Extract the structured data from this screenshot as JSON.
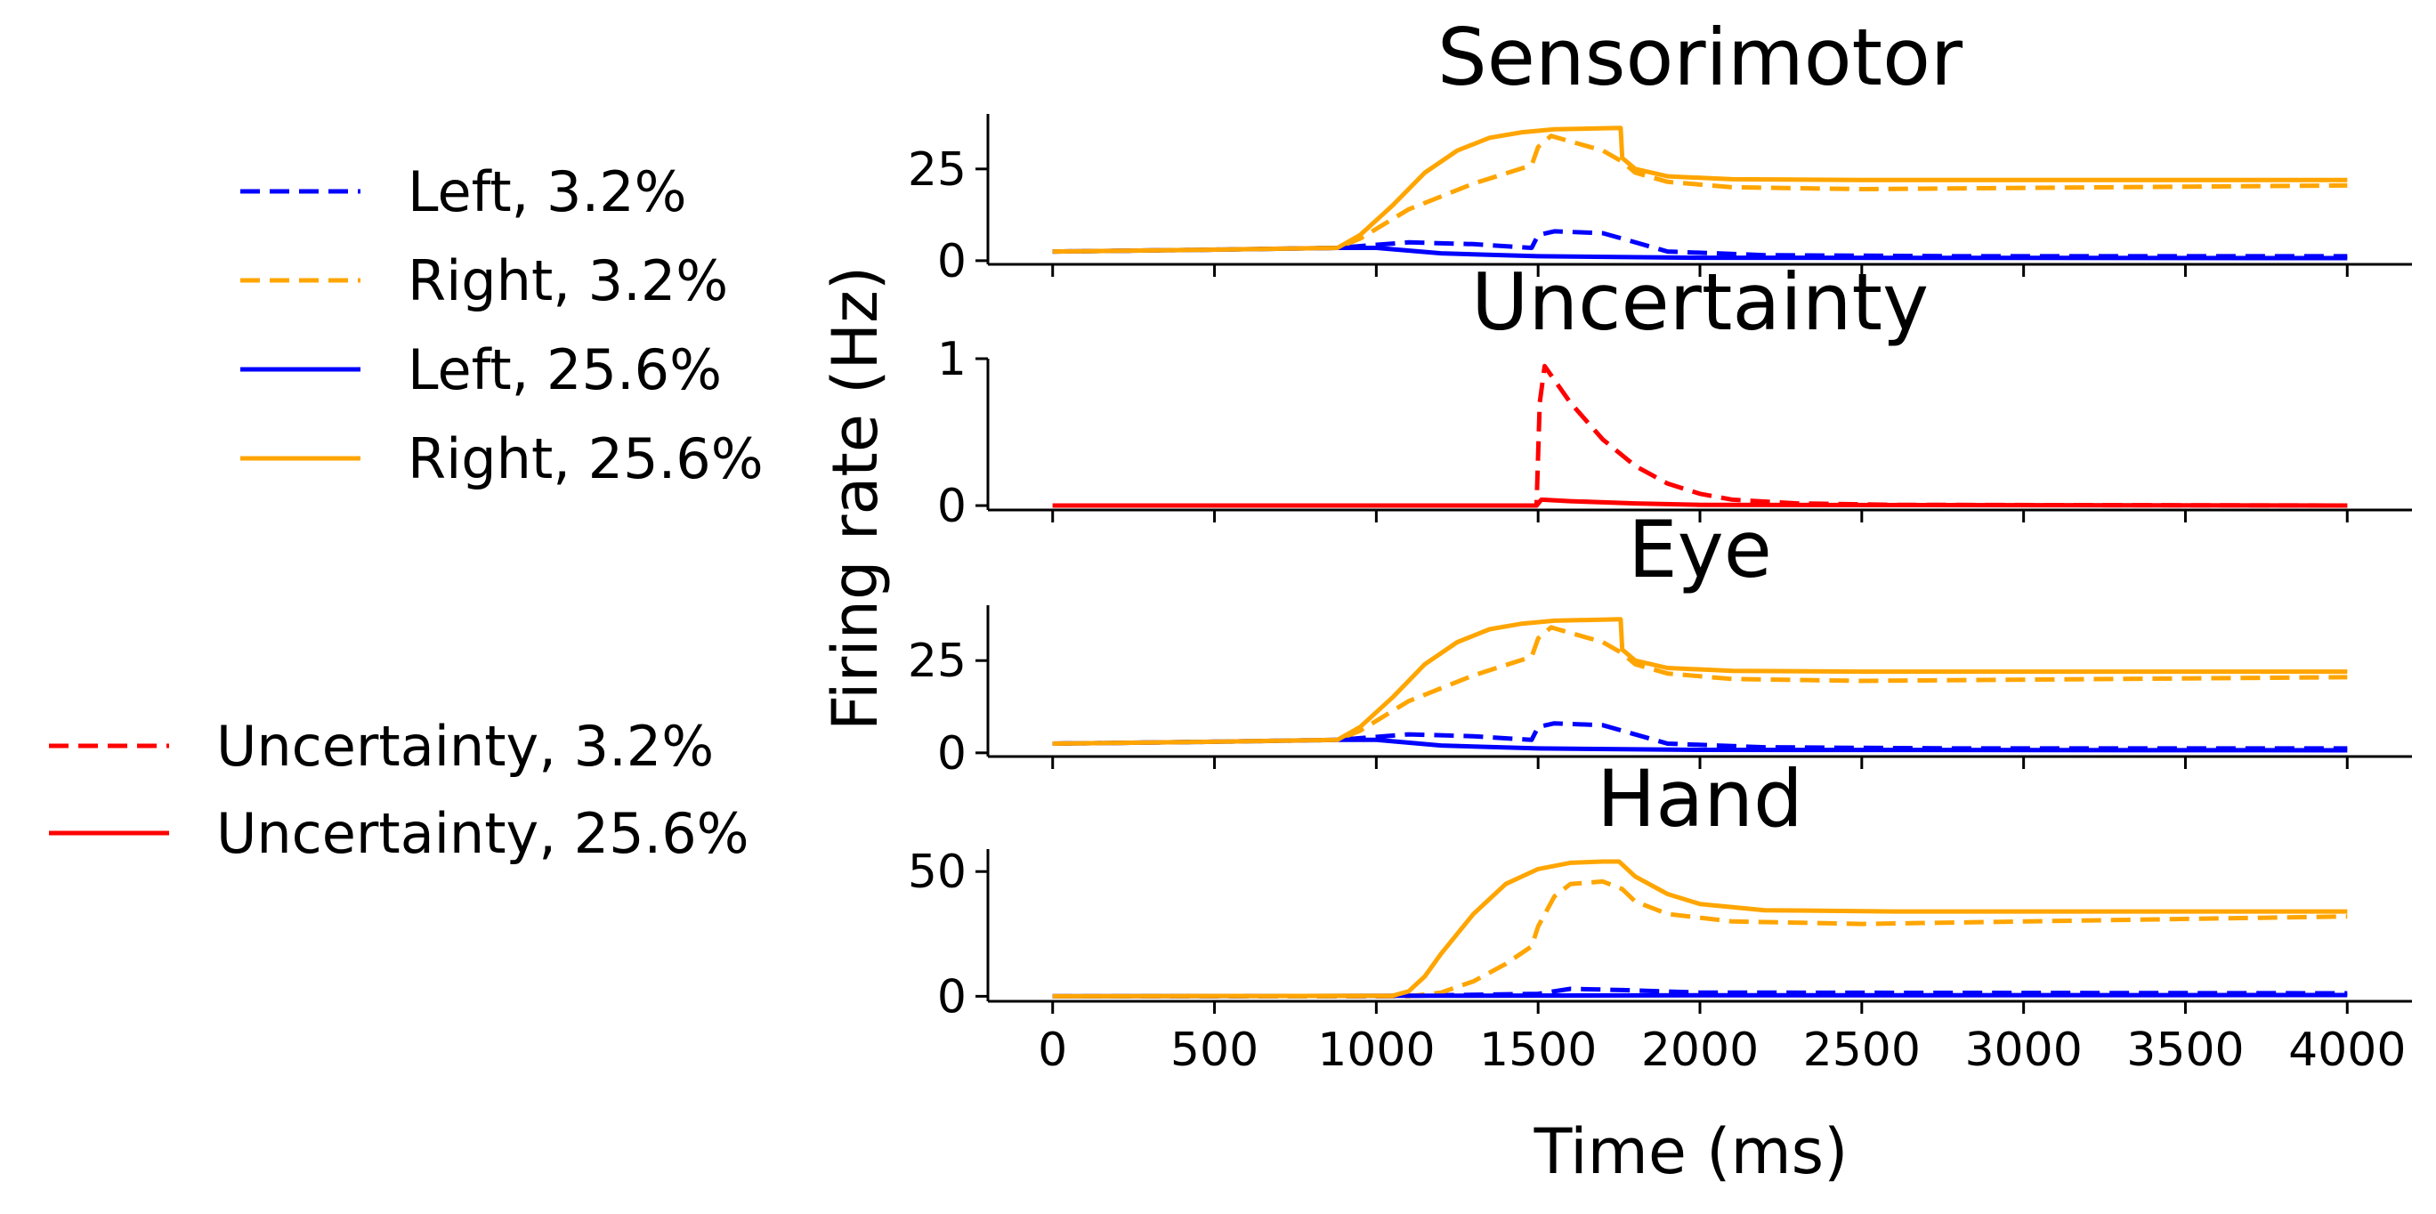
{
  "figure": {
    "ylabel": "Firing rate (Hz)",
    "xlabel": "Time (ms)",
    "x_ticks": [
      0,
      500,
      1000,
      1500,
      2000,
      2500,
      3000,
      3500,
      4000
    ],
    "xlim": [
      -200,
      4200
    ]
  },
  "legends": {
    "choice": [
      {
        "label": "Left, 3.2%",
        "color": "#0000ff",
        "dash": "dashed"
      },
      {
        "label": "Right, 3.2%",
        "color": "#ffa500",
        "dash": "dashed"
      },
      {
        "label": "Left, 25.6%",
        "color": "#0000ff",
        "dash": "solid"
      },
      {
        "label": "Right, 25.6%",
        "color": "#ffa500",
        "dash": "solid"
      }
    ],
    "uncertainty": [
      {
        "label": "Uncertainty, 3.2%",
        "color": "#ff0000",
        "dash": "dashed"
      },
      {
        "label": "Uncertainty, 25.6%",
        "color": "#ff0000",
        "dash": "solid"
      }
    ]
  },
  "chart_data": [
    {
      "type": "line",
      "title": "Sensorimotor",
      "ylim": [
        -1,
        40
      ],
      "y_ticks": [
        0,
        25
      ],
      "series": [
        {
          "name": "Left, 3.2%",
          "color": "#0000ff",
          "dash": "dashed",
          "x": [
            0,
            500,
            880,
            1100,
            1300,
            1480,
            1500,
            1550,
            1700,
            1760,
            1900,
            2200,
            2800,
            4000
          ],
          "y": [
            2.5,
            3,
            3.5,
            5,
            4.5,
            3.5,
            7,
            8,
            7.5,
            6,
            2.5,
            1.5,
            1.2,
            1.2
          ]
        },
        {
          "name": "Right, 3.2%",
          "color": "#ffa500",
          "dash": "dashed",
          "x": [
            0,
            500,
            880,
            950,
            1100,
            1300,
            1480,
            1500,
            1540,
            1620,
            1700,
            1760,
            1800,
            1900,
            2100,
            2500,
            4000
          ],
          "y": [
            2.5,
            3,
            3.5,
            6,
            14,
            21,
            26,
            31,
            34,
            32,
            30,
            27,
            24,
            21.5,
            20,
            19.5,
            20.5
          ]
        },
        {
          "name": "Left, 25.6%",
          "color": "#0000ff",
          "dash": "solid",
          "x": [
            0,
            500,
            880,
            1000,
            1200,
            1500,
            2000,
            4000
          ],
          "y": [
            2.5,
            3,
            3.5,
            3.5,
            2,
            1.2,
            0.8,
            0.7
          ]
        },
        {
          "name": "Right, 25.6%",
          "color": "#ffa500",
          "dash": "solid",
          "x": [
            0,
            500,
            880,
            950,
            1050,
            1150,
            1250,
            1350,
            1450,
            1550,
            1650,
            1755,
            1760,
            1800,
            1900,
            2100,
            2500,
            4000
          ],
          "y": [
            2.5,
            3,
            3.5,
            7,
            15,
            24,
            30,
            33.5,
            35,
            35.8,
            36,
            36.2,
            28,
            25,
            23,
            22.2,
            22,
            22
          ]
        }
      ]
    },
    {
      "type": "line",
      "title": "Uncertainty",
      "ylim": [
        -0.03,
        1.0
      ],
      "y_ticks": [
        0,
        1
      ],
      "series": [
        {
          "name": "Uncertainty, 3.2%",
          "color": "#ff0000",
          "dash": "dashed",
          "x": [
            0,
            1495,
            1505,
            1520,
            1600,
            1700,
            1800,
            1900,
            2000,
            2100,
            2300,
            2600,
            4000
          ],
          "y": [
            0,
            0,
            0.7,
            0.95,
            0.7,
            0.45,
            0.27,
            0.15,
            0.08,
            0.04,
            0.015,
            0.005,
            0
          ]
        },
        {
          "name": "Uncertainty, 25.6%",
          "color": "#ff0000",
          "dash": "solid",
          "x": [
            0,
            1495,
            1510,
            1600,
            1800,
            2000,
            4000
          ],
          "y": [
            0,
            0,
            0.04,
            0.03,
            0.015,
            0.005,
            0
          ]
        }
      ]
    },
    {
      "type": "line",
      "title": "Eye",
      "ylim": [
        -1,
        40
      ],
      "y_ticks": [
        0,
        25
      ],
      "series": [
        {
          "name": "Left, 3.2%",
          "color": "#0000ff",
          "dash": "dashed",
          "x": [
            0,
            500,
            880,
            1100,
            1300,
            1480,
            1500,
            1550,
            1700,
            1760,
            1900,
            2200,
            2800,
            4000
          ],
          "y": [
            2.5,
            3,
            3.5,
            5,
            4.5,
            3.5,
            7,
            8,
            7.5,
            6,
            2.5,
            1.5,
            1.2,
            1.2
          ]
        },
        {
          "name": "Right, 3.2%",
          "color": "#ffa500",
          "dash": "dashed",
          "x": [
            0,
            500,
            880,
            950,
            1100,
            1300,
            1480,
            1500,
            1540,
            1620,
            1700,
            1760,
            1800,
            1900,
            2100,
            2500,
            4000
          ],
          "y": [
            2.5,
            3,
            3.5,
            6,
            14,
            21,
            26,
            31,
            34,
            32,
            30,
            27,
            24,
            21.5,
            20,
            19.5,
            20.5
          ]
        },
        {
          "name": "Left, 25.6%",
          "color": "#0000ff",
          "dash": "solid",
          "x": [
            0,
            500,
            880,
            1000,
            1200,
            1500,
            2000,
            4000
          ],
          "y": [
            2.5,
            3,
            3.5,
            3.5,
            2,
            1.2,
            0.8,
            0.7
          ]
        },
        {
          "name": "Right, 25.6%",
          "color": "#ffa500",
          "dash": "solid",
          "x": [
            0,
            500,
            880,
            950,
            1050,
            1150,
            1250,
            1350,
            1450,
            1550,
            1650,
            1755,
            1760,
            1800,
            1900,
            2100,
            2500,
            4000
          ],
          "y": [
            2.5,
            3,
            3.5,
            7,
            15,
            24,
            30,
            33.5,
            35,
            35.8,
            36,
            36.2,
            28,
            25,
            23,
            22.2,
            22,
            22
          ]
        }
      ]
    },
    {
      "type": "line",
      "title": "Hand",
      "ylim": [
        -2,
        59
      ],
      "y_ticks": [
        0,
        50
      ],
      "series": [
        {
          "name": "Left, 3.2%",
          "color": "#0000ff",
          "dash": "dashed",
          "x": [
            0,
            1000,
            1500,
            1600,
            1760,
            2000,
            4000
          ],
          "y": [
            0,
            0,
            1,
            3,
            2.5,
            1.5,
            1.2
          ]
        },
        {
          "name": "Right, 3.2%",
          "color": "#ffa500",
          "dash": "dashed",
          "x": [
            0,
            1100,
            1200,
            1300,
            1400,
            1480,
            1500,
            1550,
            1600,
            1700,
            1760,
            1800,
            1900,
            2100,
            2500,
            3000,
            4000
          ],
          "y": [
            0,
            0,
            1.5,
            6,
            13,
            20,
            28,
            40,
            45,
            46,
            43,
            38,
            33,
            30,
            29,
            30,
            32
          ]
        },
        {
          "name": "Left, 25.6%",
          "color": "#0000ff",
          "dash": "solid",
          "x": [
            0,
            1200,
            2000,
            4000
          ],
          "y": [
            0,
            0.2,
            0.4,
            0.5
          ]
        },
        {
          "name": "Right, 25.6%",
          "color": "#ffa500",
          "dash": "solid",
          "x": [
            0,
            1050,
            1100,
            1150,
            1200,
            1300,
            1400,
            1500,
            1600,
            1700,
            1750,
            1800,
            1900,
            2000,
            2200,
            2600,
            4000
          ],
          "y": [
            0,
            0.2,
            2,
            8,
            17,
            33,
            45,
            51,
            53.5,
            54,
            54,
            48,
            41,
            37,
            34.5,
            34,
            34
          ]
        }
      ]
    }
  ]
}
